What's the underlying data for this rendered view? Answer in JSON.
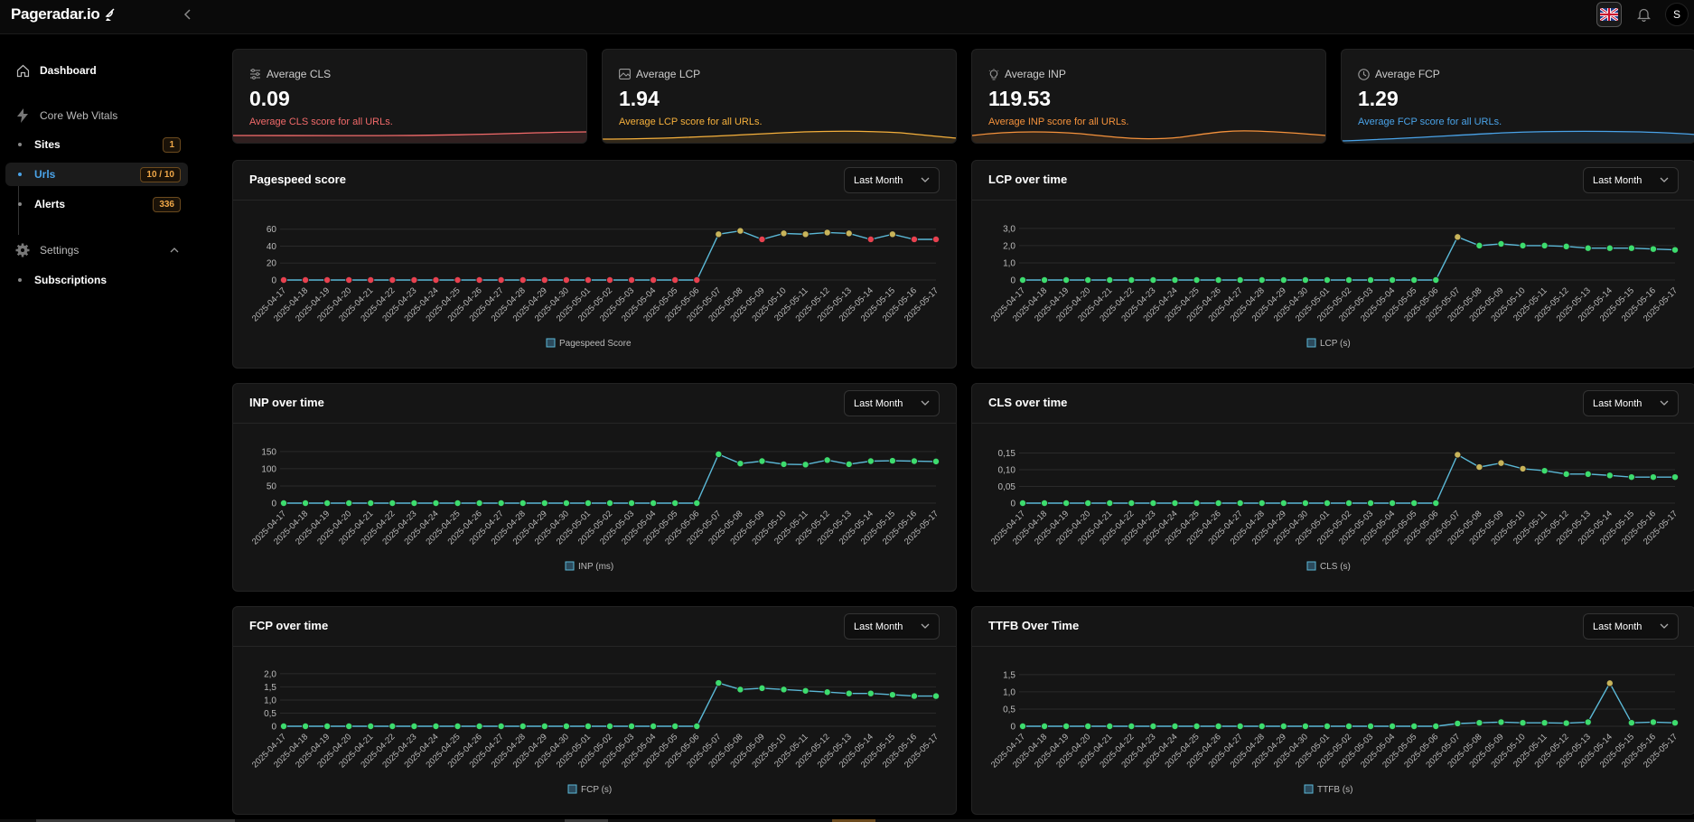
{
  "app": {
    "logo_text": "Pageradar.io",
    "avatar_initial": "S"
  },
  "icons": {
    "logo": "satellite-dish-icon",
    "collapse": "chevron-left-icon",
    "flag": "uk-flag-icon",
    "bell": "bell-icon",
    "dashboard": "home-icon",
    "cwv": "lightning-icon",
    "settings": "gear-icon",
    "cls": "sliders-icon",
    "lcp": "image-icon",
    "inp": "lightbulb-icon",
    "fcp": "clock-icon"
  },
  "sidebar": {
    "dashboard": "Dashboard",
    "core_web_vitals": "Core Web Vitals",
    "sites": {
      "label": "Sites",
      "badge": "1"
    },
    "urls": {
      "label": "Urls",
      "badge": "10 / 10"
    },
    "alerts": {
      "label": "Alerts",
      "badge": "336"
    },
    "settings": "Settings",
    "subscriptions": "Subscriptions"
  },
  "stats": [
    {
      "label": "Average CLS",
      "value": "0.09",
      "desc": "Average CLS score for all URLs.",
      "color": "#f26a6a"
    },
    {
      "label": "Average LCP",
      "value": "1.94",
      "desc": "Average LCP score for all URLs.",
      "color": "#f5b03c"
    },
    {
      "label": "Average INP",
      "value": "119.53",
      "desc": "Average INP score for all URLs.",
      "color": "#f5923c"
    },
    {
      "label": "Average FCP",
      "value": "1.29",
      "desc": "Average FCP score for all URLs.",
      "color": "#4aa3e8"
    }
  ],
  "colors": {
    "line": "#5bb8d6",
    "good": "#3ddc6e",
    "needs_improvement": "#c8b45a",
    "poor": "#e8414f"
  },
  "chart_data": [
    {
      "id": "pagespeed",
      "type": "line",
      "title": "Pagespeed score",
      "select": "Last Month",
      "series_name": "Pagespeed Score",
      "yticks": [
        "0",
        "20",
        "40",
        "60"
      ],
      "ylim": [
        0,
        65
      ],
      "x": [
        "2025-04-17",
        "2025-04-18",
        "2025-04-19",
        "2025-04-20",
        "2025-04-21",
        "2025-04-22",
        "2025-04-23",
        "2025-04-24",
        "2025-04-25",
        "2025-04-26",
        "2025-04-27",
        "2025-04-28",
        "2025-04-29",
        "2025-04-30",
        "2025-05-01",
        "2025-05-02",
        "2025-05-03",
        "2025-05-04",
        "2025-05-05",
        "2025-05-06",
        "2025-05-07",
        "2025-05-08",
        "2025-05-09",
        "2025-05-10",
        "2025-05-11",
        "2025-05-12",
        "2025-05-13",
        "2025-05-14",
        "2025-05-15",
        "2025-05-16",
        "2025-05-17"
      ],
      "values": [
        0,
        0,
        0,
        0,
        0,
        0,
        0,
        0,
        0,
        0,
        0,
        0,
        0,
        0,
        0,
        0,
        0,
        0,
        0,
        0,
        54,
        58,
        48,
        55,
        54,
        56,
        55,
        48,
        54,
        48,
        48
      ],
      "point_colors": [
        "poor",
        "poor",
        "poor",
        "poor",
        "poor",
        "poor",
        "poor",
        "poor",
        "poor",
        "poor",
        "poor",
        "poor",
        "poor",
        "poor",
        "poor",
        "poor",
        "poor",
        "poor",
        "poor",
        "poor",
        "needs_improvement",
        "needs_improvement",
        "poor",
        "needs_improvement",
        "needs_improvement",
        "needs_improvement",
        "needs_improvement",
        "poor",
        "needs_improvement",
        "poor",
        "poor"
      ]
    },
    {
      "id": "lcp",
      "type": "line",
      "title": "LCP over time",
      "select": "Last Month",
      "series_name": "LCP (s)",
      "yticks": [
        "0",
        "1,0",
        "2,0",
        "3,0"
      ],
      "ylim": [
        0,
        3.2
      ],
      "x": [
        "2025-04-17",
        "2025-04-18",
        "2025-04-19",
        "2025-04-20",
        "2025-04-21",
        "2025-04-22",
        "2025-04-23",
        "2025-04-24",
        "2025-04-25",
        "2025-04-26",
        "2025-04-27",
        "2025-04-28",
        "2025-04-29",
        "2025-04-30",
        "2025-05-01",
        "2025-05-02",
        "2025-05-03",
        "2025-05-04",
        "2025-05-05",
        "2025-05-06",
        "2025-05-07",
        "2025-05-08",
        "2025-05-09",
        "2025-05-10",
        "2025-05-11",
        "2025-05-12",
        "2025-05-13",
        "2025-05-14",
        "2025-05-15",
        "2025-05-16",
        "2025-05-17"
      ],
      "values": [
        0,
        0,
        0,
        0,
        0,
        0,
        0,
        0,
        0,
        0,
        0,
        0,
        0,
        0,
        0,
        0,
        0,
        0,
        0,
        0,
        2.5,
        2.0,
        2.1,
        2.0,
        2.0,
        1.95,
        1.85,
        1.85,
        1.85,
        1.8,
        1.75
      ],
      "point_colors": [
        "good",
        "good",
        "good",
        "good",
        "good",
        "good",
        "good",
        "good",
        "good",
        "good",
        "good",
        "good",
        "good",
        "good",
        "good",
        "good",
        "good",
        "good",
        "good",
        "good",
        "needs_improvement",
        "good",
        "good",
        "good",
        "good",
        "good",
        "good",
        "good",
        "good",
        "good",
        "good"
      ]
    },
    {
      "id": "inp",
      "type": "line",
      "title": "INP over time",
      "select": "Last Month",
      "series_name": "INP (ms)",
      "yticks": [
        "0",
        "50",
        "100",
        "150"
      ],
      "ylim": [
        0,
        160
      ],
      "x": [
        "2025-04-17",
        "2025-04-18",
        "2025-04-19",
        "2025-04-20",
        "2025-04-21",
        "2025-04-22",
        "2025-04-23",
        "2025-04-24",
        "2025-04-25",
        "2025-04-26",
        "2025-04-27",
        "2025-04-28",
        "2025-04-29",
        "2025-04-30",
        "2025-05-01",
        "2025-05-02",
        "2025-05-03",
        "2025-05-04",
        "2025-05-05",
        "2025-05-06",
        "2025-05-07",
        "2025-05-08",
        "2025-05-09",
        "2025-05-10",
        "2025-05-11",
        "2025-05-12",
        "2025-05-13",
        "2025-05-14",
        "2025-05-15",
        "2025-05-16",
        "2025-05-17"
      ],
      "values": [
        0,
        0,
        0,
        0,
        0,
        0,
        0,
        0,
        0,
        0,
        0,
        0,
        0,
        0,
        0,
        0,
        0,
        0,
        0,
        0,
        142,
        115,
        122,
        113,
        112,
        125,
        113,
        122,
        123,
        122,
        121
      ],
      "point_colors": [
        "good",
        "good",
        "good",
        "good",
        "good",
        "good",
        "good",
        "good",
        "good",
        "good",
        "good",
        "good",
        "good",
        "good",
        "good",
        "good",
        "good",
        "good",
        "good",
        "good",
        "good",
        "good",
        "good",
        "good",
        "good",
        "good",
        "good",
        "good",
        "good",
        "good",
        "good"
      ]
    },
    {
      "id": "cls",
      "type": "line",
      "title": "CLS over time",
      "select": "Last Month",
      "series_name": "CLS (s)",
      "yticks": [
        "0",
        "0,05",
        "0,10",
        "0,15"
      ],
      "ylim": [
        0,
        0.165
      ],
      "x": [
        "2025-04-17",
        "2025-04-18",
        "2025-04-19",
        "2025-04-20",
        "2025-04-21",
        "2025-04-22",
        "2025-04-23",
        "2025-04-24",
        "2025-04-25",
        "2025-04-26",
        "2025-04-27",
        "2025-04-28",
        "2025-04-29",
        "2025-04-30",
        "2025-05-01",
        "2025-05-02",
        "2025-05-03",
        "2025-05-04",
        "2025-05-05",
        "2025-05-06",
        "2025-05-07",
        "2025-05-08",
        "2025-05-09",
        "2025-05-10",
        "2025-05-11",
        "2025-05-12",
        "2025-05-13",
        "2025-05-14",
        "2025-05-15",
        "2025-05-16",
        "2025-05-17"
      ],
      "values": [
        0,
        0,
        0,
        0,
        0,
        0,
        0,
        0,
        0,
        0,
        0,
        0,
        0,
        0,
        0,
        0,
        0,
        0,
        0,
        0,
        0.145,
        0.108,
        0.12,
        0.103,
        0.097,
        0.087,
        0.087,
        0.083,
        0.078,
        0.078,
        0.078
      ],
      "point_colors": [
        "good",
        "good",
        "good",
        "good",
        "good",
        "good",
        "good",
        "good",
        "good",
        "good",
        "good",
        "good",
        "good",
        "good",
        "good",
        "good",
        "good",
        "good",
        "good",
        "good",
        "needs_improvement",
        "needs_improvement",
        "needs_improvement",
        "needs_improvement",
        "good",
        "good",
        "good",
        "good",
        "good",
        "good",
        "good"
      ]
    },
    {
      "id": "fcp",
      "type": "line",
      "title": "FCP over time",
      "select": "Last Month",
      "series_name": "FCP (s)",
      "yticks": [
        "0",
        "0,5",
        "1,0",
        "1,5",
        "2,0"
      ],
      "ylim": [
        0,
        2.1
      ],
      "x": [
        "2025-04-17",
        "2025-04-18",
        "2025-04-19",
        "2025-04-20",
        "2025-04-21",
        "2025-04-22",
        "2025-04-23",
        "2025-04-24",
        "2025-04-25",
        "2025-04-26",
        "2025-04-27",
        "2025-04-28",
        "2025-04-29",
        "2025-04-30",
        "2025-05-01",
        "2025-05-02",
        "2025-05-03",
        "2025-05-04",
        "2025-05-05",
        "2025-05-06",
        "2025-05-07",
        "2025-05-08",
        "2025-05-09",
        "2025-05-10",
        "2025-05-11",
        "2025-05-12",
        "2025-05-13",
        "2025-05-14",
        "2025-05-15",
        "2025-05-16",
        "2025-05-17"
      ],
      "values": [
        0,
        0,
        0,
        0,
        0,
        0,
        0,
        0,
        0,
        0,
        0,
        0,
        0,
        0,
        0,
        0,
        0,
        0,
        0,
        0,
        1.65,
        1.4,
        1.45,
        1.4,
        1.35,
        1.3,
        1.25,
        1.25,
        1.2,
        1.15,
        1.15
      ],
      "point_colors": [
        "good",
        "good",
        "good",
        "good",
        "good",
        "good",
        "good",
        "good",
        "good",
        "good",
        "good",
        "good",
        "good",
        "good",
        "good",
        "good",
        "good",
        "good",
        "good",
        "good",
        "good",
        "good",
        "good",
        "good",
        "good",
        "good",
        "good",
        "good",
        "good",
        "good",
        "good"
      ]
    },
    {
      "id": "ttfb",
      "type": "line",
      "title": "TTFB Over Time",
      "select": "Last Month",
      "series_name": "TTFB (s)",
      "yticks": [
        "0",
        "0,5",
        "1,0",
        "1,5"
      ],
      "ylim": [
        0,
        1.6
      ],
      "x": [
        "2025-04-17",
        "2025-04-18",
        "2025-04-19",
        "2025-04-20",
        "2025-04-21",
        "2025-04-22",
        "2025-04-23",
        "2025-04-24",
        "2025-04-25",
        "2025-04-26",
        "2025-04-27",
        "2025-04-28",
        "2025-04-29",
        "2025-04-30",
        "2025-05-01",
        "2025-05-02",
        "2025-05-03",
        "2025-05-04",
        "2025-05-05",
        "2025-05-06",
        "2025-05-07",
        "2025-05-08",
        "2025-05-09",
        "2025-05-10",
        "2025-05-11",
        "2025-05-12",
        "2025-05-13",
        "2025-05-14",
        "2025-05-15",
        "2025-05-16",
        "2025-05-17"
      ],
      "values": [
        0,
        0,
        0,
        0,
        0,
        0,
        0,
        0,
        0,
        0,
        0,
        0,
        0,
        0,
        0,
        0,
        0,
        0,
        0,
        0,
        0.08,
        0.1,
        0.12,
        0.1,
        0.1,
        0.09,
        0.12,
        1.25,
        0.1,
        0.12,
        0.1
      ],
      "point_colors": [
        "good",
        "good",
        "good",
        "good",
        "good",
        "good",
        "good",
        "good",
        "good",
        "good",
        "good",
        "good",
        "good",
        "good",
        "good",
        "good",
        "good",
        "good",
        "good",
        "good",
        "good",
        "good",
        "good",
        "good",
        "good",
        "good",
        "good",
        "needs_improvement",
        "good",
        "good",
        "good"
      ]
    }
  ]
}
